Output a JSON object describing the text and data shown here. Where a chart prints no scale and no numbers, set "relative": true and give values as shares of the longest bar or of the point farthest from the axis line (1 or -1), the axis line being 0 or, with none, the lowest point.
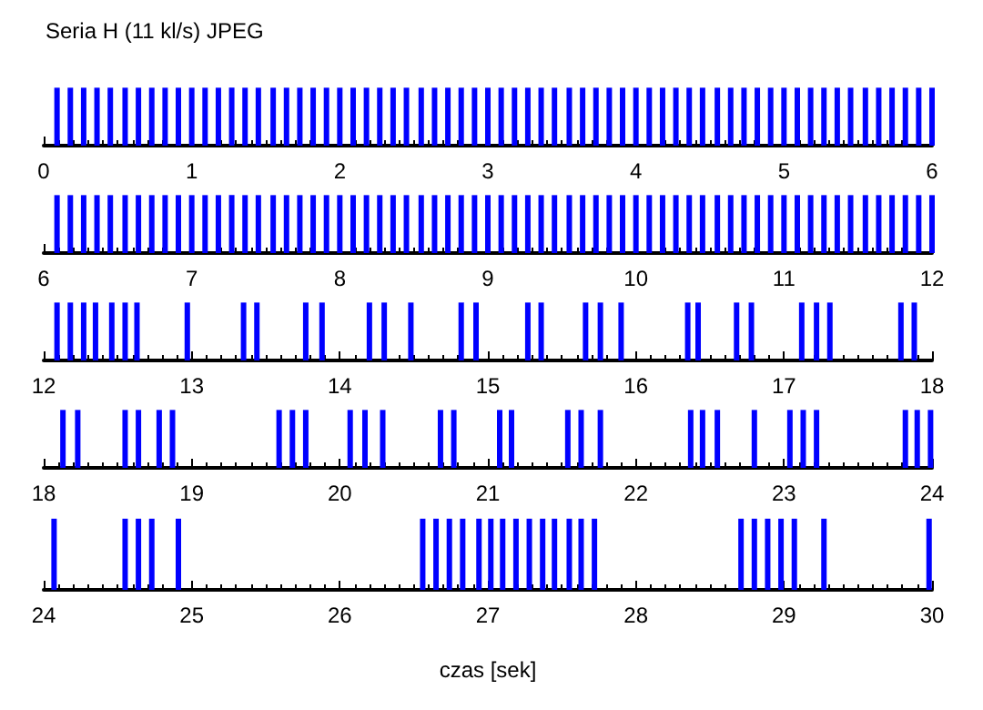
{
  "chart_data": [
    {
      "type": "bar",
      "title": "Seria H (11 kl/s) JPEG",
      "relative": true,
      "color": "#0000ff",
      "xlim": [
        0,
        6
      ],
      "xticks": [
        0,
        1,
        2,
        3,
        4,
        5,
        6
      ],
      "x": [
        0.09,
        0.18,
        0.27,
        0.36,
        0.45,
        0.55,
        0.64,
        0.73,
        0.82,
        0.91,
        1.0,
        1.09,
        1.18,
        1.27,
        1.36,
        1.45,
        1.55,
        1.64,
        1.73,
        1.82,
        1.91,
        2.0,
        2.09,
        2.18,
        2.27,
        2.36,
        2.45,
        2.55,
        2.64,
        2.73,
        2.82,
        2.91,
        3.0,
        3.09,
        3.18,
        3.27,
        3.36,
        3.45,
        3.55,
        3.64,
        3.73,
        3.82,
        3.91,
        4.0,
        4.09,
        4.18,
        4.27,
        4.36,
        4.45,
        4.55,
        4.64,
        4.73,
        4.82,
        4.91,
        5.0,
        5.09,
        5.18,
        5.27,
        5.36,
        5.45,
        5.55,
        5.64,
        5.73,
        5.82,
        5.91,
        6.0
      ],
      "values": [
        1,
        1,
        1,
        1,
        1,
        1,
        1,
        1,
        1,
        1,
        1,
        1,
        1,
        1,
        1,
        1,
        1,
        1,
        1,
        1,
        1,
        1,
        1,
        1,
        1,
        1,
        1,
        1,
        1,
        1,
        1,
        1,
        1,
        1,
        1,
        1,
        1,
        1,
        1,
        1,
        1,
        1,
        1,
        1,
        1,
        1,
        1,
        1,
        1,
        1,
        1,
        1,
        1,
        1,
        1,
        1,
        1,
        1,
        1,
        1,
        1,
        1,
        1,
        1,
        1,
        1
      ]
    },
    {
      "type": "bar",
      "relative": true,
      "color": "#0000ff",
      "xlim": [
        6,
        12
      ],
      "xticks": [
        6,
        7,
        8,
        9,
        10,
        11,
        12
      ],
      "x": [
        6.09,
        6.18,
        6.27,
        6.36,
        6.45,
        6.55,
        6.64,
        6.73,
        6.82,
        6.91,
        7.0,
        7.09,
        7.18,
        7.27,
        7.36,
        7.45,
        7.55,
        7.64,
        7.73,
        7.82,
        7.91,
        8.0,
        8.09,
        8.18,
        8.27,
        8.36,
        8.45,
        8.55,
        8.64,
        8.73,
        8.82,
        8.91,
        9.0,
        9.09,
        9.18,
        9.27,
        9.36,
        9.45,
        9.55,
        9.64,
        9.73,
        9.82,
        9.91,
        10.0,
        10.09,
        10.18,
        10.27,
        10.36,
        10.45,
        10.55,
        10.64,
        10.73,
        10.82,
        10.91,
        11.0,
        11.09,
        11.18,
        11.27,
        11.36,
        11.45,
        11.55,
        11.64,
        11.73,
        11.82,
        11.91,
        12.0
      ],
      "values": [
        1,
        1,
        1,
        1,
        1,
        1,
        1,
        1,
        1,
        1,
        1,
        1,
        1,
        1,
        1,
        1,
        1,
        1,
        1,
        1,
        1,
        1,
        1,
        1,
        1,
        1,
        1,
        1,
        1,
        1,
        1,
        1,
        1,
        1,
        1,
        1,
        1,
        1,
        1,
        1,
        1,
        1,
        1,
        1,
        1,
        1,
        1,
        1,
        1,
        1,
        1,
        1,
        1,
        1,
        1,
        1,
        1,
        1,
        1,
        1,
        1,
        1,
        1,
        1,
        1,
        1
      ]
    },
    {
      "type": "bar",
      "relative": true,
      "color": "#0000ff",
      "xlim": [
        12,
        18
      ],
      "xticks": [
        12,
        13,
        14,
        15,
        16,
        17,
        18
      ],
      "x": [
        12.09,
        12.18,
        12.27,
        12.35,
        12.46,
        12.55,
        12.63,
        12.97,
        13.35,
        13.44,
        13.77,
        13.88,
        14.2,
        14.3,
        14.48,
        14.82,
        14.92,
        15.27,
        15.36,
        15.66,
        15.76,
        15.9,
        16.35,
        16.42,
        16.68,
        16.78,
        17.12,
        17.22,
        17.31,
        17.79,
        17.88
      ],
      "values": [
        1,
        1,
        1,
        1,
        1,
        1,
        1,
        1,
        1,
        1,
        1,
        1,
        1,
        1,
        1,
        1,
        1,
        1,
        1,
        1,
        1,
        1,
        1,
        1,
        1,
        1,
        1,
        1,
        1,
        1,
        1
      ]
    },
    {
      "type": "bar",
      "relative": true,
      "color": "#0000ff",
      "xlim": [
        18,
        24
      ],
      "xticks": [
        18,
        19,
        20,
        21,
        22,
        23,
        24
      ],
      "x": [
        18.13,
        18.23,
        18.55,
        18.64,
        18.78,
        18.87,
        19.59,
        19.68,
        19.77,
        20.07,
        20.17,
        20.29,
        20.68,
        20.77,
        21.08,
        21.16,
        21.54,
        21.63,
        21.76,
        22.37,
        22.45,
        22.55,
        22.8,
        23.04,
        23.13,
        23.22,
        23.82,
        23.9,
        23.99
      ],
      "values": [
        1,
        1,
        1,
        1,
        1,
        1,
        1,
        1,
        1,
        1,
        1,
        1,
        1,
        1,
        1,
        1,
        1,
        1,
        1,
        1,
        1,
        1,
        1,
        1,
        1,
        1,
        1,
        1,
        1
      ]
    },
    {
      "type": "bar",
      "relative": true,
      "color": "#0000ff",
      "xlim": [
        24,
        30
      ],
      "xticks": [
        24,
        25,
        26,
        27,
        28,
        29,
        30
      ],
      "xlabel": "czas [sek]",
      "x": [
        24.07,
        24.55,
        24.64,
        24.73,
        24.91,
        26.56,
        26.65,
        26.74,
        26.83,
        26.94,
        27.02,
        27.1,
        27.19,
        27.28,
        27.37,
        27.45,
        27.55,
        27.63,
        27.72,
        28.71,
        28.8,
        28.89,
        28.98,
        29.07,
        29.27,
        29.98
      ],
      "values": [
        1,
        1,
        1,
        1,
        1,
        1,
        1,
        1,
        1,
        1,
        1,
        1,
        1,
        1,
        1,
        1,
        1,
        1,
        1,
        1,
        1,
        1,
        1,
        1,
        1,
        1
      ]
    }
  ]
}
